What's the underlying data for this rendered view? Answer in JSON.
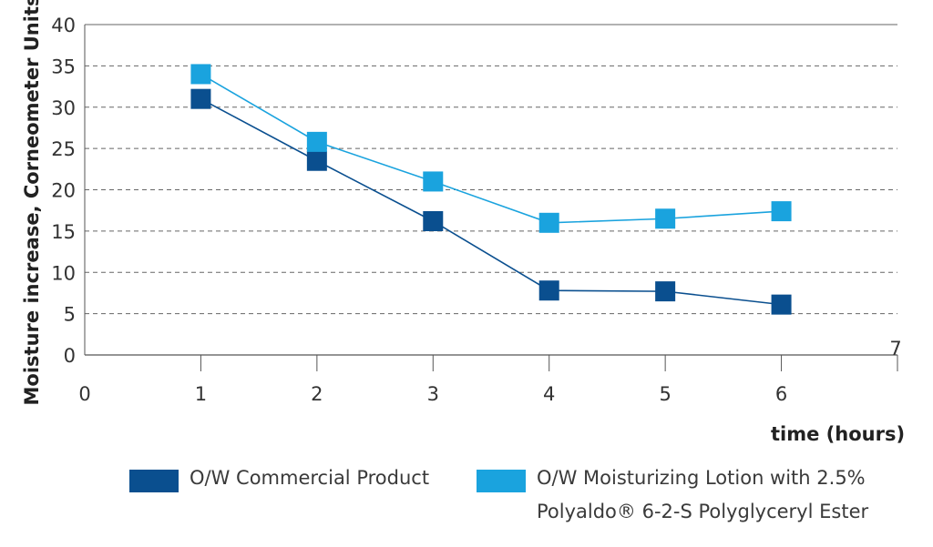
{
  "chart_data": {
    "type": "line",
    "title": "",
    "xlabel": "time (hours)",
    "ylabel": "Moisture increase, Corneometer Units",
    "xlim": [
      0,
      7
    ],
    "ylim": [
      0,
      40
    ],
    "x_ticks": [
      "0",
      "1",
      "2",
      "3",
      "4",
      "5",
      "6",
      "7"
    ],
    "y_ticks": [
      "0",
      "5",
      "10",
      "15",
      "20",
      "25",
      "30",
      "35",
      "40"
    ],
    "grid": true,
    "legend_position": "bottom",
    "series": [
      {
        "name": "O/W Commercial Product",
        "color": "#0a4f8f",
        "x": [
          1,
          2,
          3,
          4,
          5,
          6
        ],
        "y": [
          31,
          23.5,
          16.2,
          7.8,
          7.7,
          6.1
        ]
      },
      {
        "name": "O/W Moisturizing Lotion with 2.5% Polyaldo® 6-2-S Polyglyceryl Ester",
        "name_line1": "O/W Moisturizing Lotion with 2.5%",
        "name_line2": "Polyaldo® 6-2-S Polyglyceryl Ester",
        "color": "#1aa3de",
        "x": [
          1,
          2,
          3,
          4,
          5,
          6
        ],
        "y": [
          34,
          25.8,
          21,
          16,
          16.5,
          17.4
        ]
      }
    ]
  }
}
